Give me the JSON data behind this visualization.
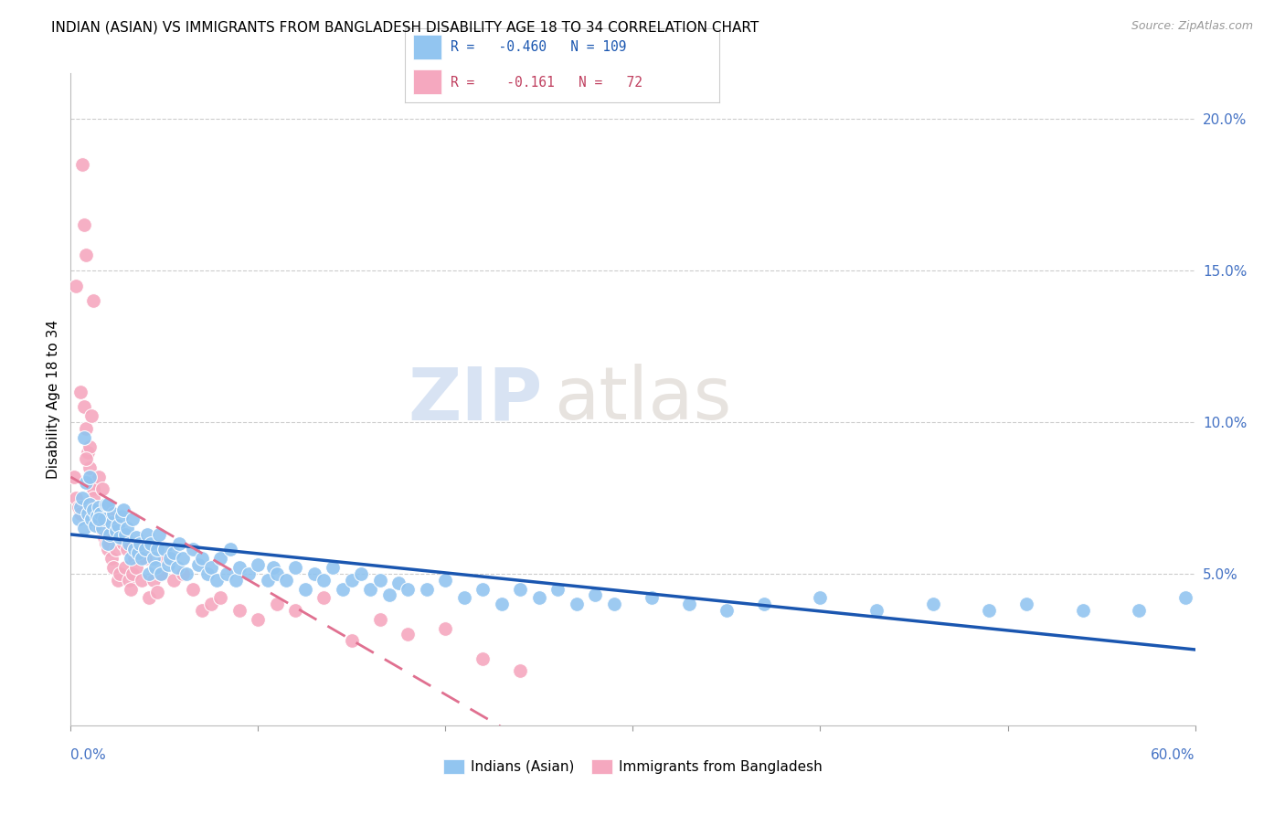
{
  "title": "INDIAN (ASIAN) VS IMMIGRANTS FROM BANGLADESH DISABILITY AGE 18 TO 34 CORRELATION CHART",
  "source": "Source: ZipAtlas.com",
  "ylabel": "Disability Age 18 to 34",
  "right_yticks": [
    "20.0%",
    "15.0%",
    "10.0%",
    "5.0%"
  ],
  "right_ytick_vals": [
    0.2,
    0.15,
    0.1,
    0.05
  ],
  "xmin": 0.0,
  "xmax": 0.6,
  "ymin": 0.0,
  "ymax": 0.215,
  "indian_color": "#92c5f0",
  "bangladesh_color": "#f5a8bf",
  "indian_line_color": "#1a56b0",
  "bangladesh_line_color": "#e07090",
  "watermark_zip": "ZIP",
  "watermark_atlas": "atlas",
  "indian_scatter_x": [
    0.004,
    0.005,
    0.006,
    0.007,
    0.008,
    0.009,
    0.01,
    0.011,
    0.012,
    0.013,
    0.014,
    0.015,
    0.016,
    0.017,
    0.018,
    0.019,
    0.02,
    0.021,
    0.022,
    0.023,
    0.024,
    0.025,
    0.026,
    0.027,
    0.028,
    0.029,
    0.03,
    0.031,
    0.032,
    0.033,
    0.034,
    0.035,
    0.036,
    0.037,
    0.038,
    0.04,
    0.041,
    0.042,
    0.043,
    0.044,
    0.045,
    0.046,
    0.047,
    0.048,
    0.05,
    0.052,
    0.053,
    0.055,
    0.057,
    0.058,
    0.06,
    0.062,
    0.065,
    0.068,
    0.07,
    0.073,
    0.075,
    0.078,
    0.08,
    0.083,
    0.085,
    0.088,
    0.09,
    0.095,
    0.1,
    0.105,
    0.108,
    0.11,
    0.115,
    0.12,
    0.125,
    0.13,
    0.135,
    0.14,
    0.145,
    0.15,
    0.155,
    0.16,
    0.165,
    0.17,
    0.175,
    0.18,
    0.19,
    0.2,
    0.21,
    0.22,
    0.23,
    0.24,
    0.25,
    0.26,
    0.27,
    0.28,
    0.29,
    0.31,
    0.33,
    0.35,
    0.37,
    0.4,
    0.43,
    0.46,
    0.49,
    0.51,
    0.54,
    0.57,
    0.595,
    0.007,
    0.01,
    0.015,
    0.02
  ],
  "indian_scatter_y": [
    0.068,
    0.072,
    0.075,
    0.065,
    0.08,
    0.07,
    0.073,
    0.068,
    0.071,
    0.066,
    0.069,
    0.072,
    0.07,
    0.065,
    0.068,
    0.073,
    0.06,
    0.063,
    0.067,
    0.07,
    0.064,
    0.066,
    0.062,
    0.069,
    0.071,
    0.063,
    0.065,
    0.06,
    0.055,
    0.068,
    0.058,
    0.062,
    0.057,
    0.06,
    0.055,
    0.058,
    0.063,
    0.05,
    0.06,
    0.055,
    0.052,
    0.058,
    0.063,
    0.05,
    0.058,
    0.053,
    0.055,
    0.057,
    0.052,
    0.06,
    0.055,
    0.05,
    0.058,
    0.053,
    0.055,
    0.05,
    0.052,
    0.048,
    0.055,
    0.05,
    0.058,
    0.048,
    0.052,
    0.05,
    0.053,
    0.048,
    0.052,
    0.05,
    0.048,
    0.052,
    0.045,
    0.05,
    0.048,
    0.052,
    0.045,
    0.048,
    0.05,
    0.045,
    0.048,
    0.043,
    0.047,
    0.045,
    0.045,
    0.048,
    0.042,
    0.045,
    0.04,
    0.045,
    0.042,
    0.045,
    0.04,
    0.043,
    0.04,
    0.042,
    0.04,
    0.038,
    0.04,
    0.042,
    0.038,
    0.04,
    0.038,
    0.04,
    0.038,
    0.038,
    0.042,
    0.095,
    0.082,
    0.068,
    0.073
  ],
  "bangladesh_scatter_x": [
    0.002,
    0.003,
    0.004,
    0.005,
    0.006,
    0.007,
    0.007,
    0.008,
    0.008,
    0.009,
    0.01,
    0.01,
    0.011,
    0.011,
    0.012,
    0.012,
    0.013,
    0.014,
    0.015,
    0.015,
    0.016,
    0.017,
    0.018,
    0.018,
    0.019,
    0.02,
    0.02,
    0.021,
    0.022,
    0.022,
    0.023,
    0.024,
    0.025,
    0.026,
    0.027,
    0.028,
    0.029,
    0.03,
    0.031,
    0.032,
    0.033,
    0.034,
    0.035,
    0.036,
    0.038,
    0.04,
    0.042,
    0.044,
    0.046,
    0.048,
    0.05,
    0.055,
    0.06,
    0.065,
    0.07,
    0.075,
    0.08,
    0.09,
    0.1,
    0.11,
    0.12,
    0.135,
    0.15,
    0.165,
    0.18,
    0.2,
    0.22,
    0.24,
    0.003,
    0.005,
    0.008,
    0.012
  ],
  "bangladesh_scatter_y": [
    0.082,
    0.075,
    0.072,
    0.07,
    0.185,
    0.165,
    0.105,
    0.155,
    0.098,
    0.09,
    0.092,
    0.085,
    0.08,
    0.102,
    0.078,
    0.075,
    0.072,
    0.07,
    0.068,
    0.082,
    0.065,
    0.078,
    0.062,
    0.072,
    0.06,
    0.063,
    0.058,
    0.06,
    0.055,
    0.068,
    0.052,
    0.058,
    0.048,
    0.05,
    0.062,
    0.06,
    0.052,
    0.058,
    0.048,
    0.045,
    0.05,
    0.055,
    0.052,
    0.058,
    0.048,
    0.055,
    0.042,
    0.048,
    0.044,
    0.05,
    0.055,
    0.048,
    0.05,
    0.045,
    0.038,
    0.04,
    0.042,
    0.038,
    0.035,
    0.04,
    0.038,
    0.042,
    0.028,
    0.035,
    0.03,
    0.032,
    0.022,
    0.018,
    0.145,
    0.11,
    0.088,
    0.14
  ]
}
